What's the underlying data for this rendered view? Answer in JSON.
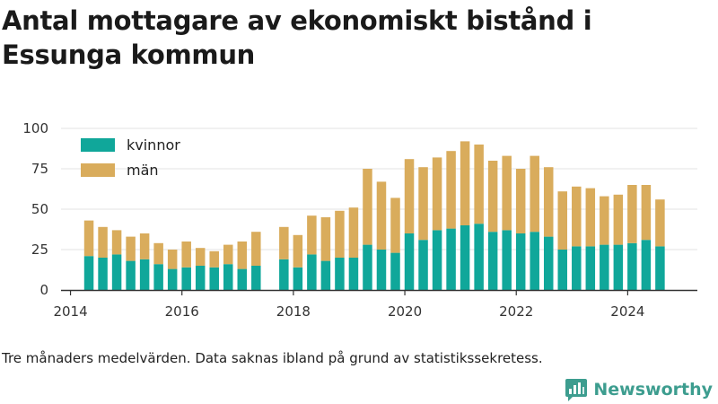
{
  "chart_data": {
    "type": "bar",
    "stacked": true,
    "title": "Antal mottagare av ekonomiskt bistånd i Essunga kommun",
    "x_axis": {
      "min": 2013.83,
      "max": 2025.25,
      "ticks": [
        "2014",
        "2016",
        "2018",
        "2020",
        "2022",
        "2024"
      ]
    },
    "y_axis": {
      "min": 0,
      "max": 100,
      "ticks": [
        "0",
        "25",
        "50",
        "75",
        "100"
      ]
    },
    "grid": "horizontal",
    "legend_position": "top-left",
    "series": [
      {
        "name": "kvinnor",
        "color": "#10a79a",
        "values": [
          21,
          20,
          22,
          18,
          19,
          16,
          13,
          14,
          15,
          14,
          16,
          13,
          15,
          null,
          19,
          14,
          22,
          18,
          20,
          20,
          28,
          25,
          23,
          35,
          31,
          37,
          38,
          40,
          41,
          36,
          37,
          35,
          36,
          33,
          25,
          27,
          27,
          28,
          28,
          29,
          31,
          27
        ]
      },
      {
        "name": "män",
        "color": "#d9ac5c",
        "values": [
          22,
          19,
          15,
          15,
          16,
          13,
          12,
          16,
          11,
          10,
          12,
          17,
          21,
          null,
          20,
          20,
          24,
          27,
          29,
          31,
          47,
          42,
          34,
          46,
          45,
          45,
          48,
          52,
          49,
          44,
          46,
          40,
          47,
          43,
          36,
          37,
          36,
          30,
          31,
          36,
          34,
          29
        ]
      }
    ],
    "x": [
      2014.33,
      2014.58,
      2014.83,
      2015.08,
      2015.33,
      2015.58,
      2015.83,
      2016.08,
      2016.33,
      2016.58,
      2016.83,
      2017.08,
      2017.33,
      2017.58,
      2017.83,
      2018.08,
      2018.33,
      2018.58,
      2018.83,
      2019.08,
      2019.33,
      2019.58,
      2019.83,
      2020.08,
      2020.33,
      2020.58,
      2020.83,
      2021.08,
      2021.33,
      2021.58,
      2021.83,
      2022.08,
      2022.33,
      2022.58,
      2022.83,
      2023.08,
      2023.33,
      2023.58,
      2023.83,
      2024.08,
      2024.33,
      2024.58
    ]
  },
  "footnote": "Tre månaders medelvärden. Data saknas ibland på grund av statistikssekretess.",
  "brand": {
    "name": "Newsworthy",
    "icon": "newsworthy-logo-icon",
    "color": "#3d9d8f"
  }
}
